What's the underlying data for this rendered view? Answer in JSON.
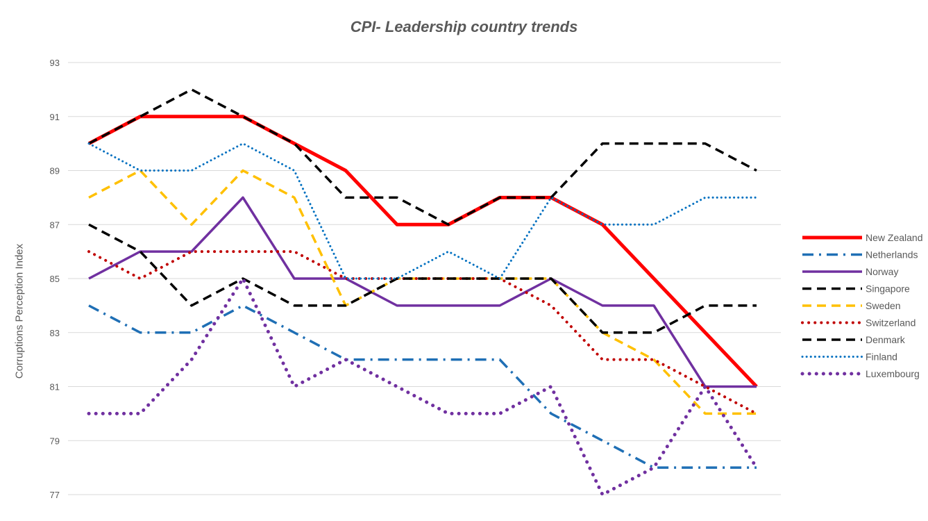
{
  "chart_data": {
    "type": "line",
    "title": "CPI- Leadership country trends",
    "xlabel": "",
    "ylabel": "Corruptions Perception Index",
    "ylim": [
      77,
      93
    ],
    "yticks": [
      93,
      91,
      89,
      87,
      85,
      83,
      81,
      79,
      77
    ],
    "grid": true,
    "legend_position": "right",
    "x": [
      1,
      2,
      3,
      4,
      5,
      6,
      7,
      8,
      9,
      10,
      11,
      12,
      13,
      14
    ],
    "series": [
      {
        "name": "New Zealand",
        "color": "#ff0000",
        "style": "solid-thick",
        "values": [
          90,
          91,
          91,
          91,
          90,
          89,
          87,
          87,
          88,
          88,
          87,
          85,
          83,
          81
        ]
      },
      {
        "name": "Netherlands",
        "color": "#1f6fb5",
        "style": "dashdot",
        "values": [
          84,
          83,
          83,
          84,
          83,
          82,
          82,
          82,
          82,
          80,
          79,
          78,
          78,
          78
        ]
      },
      {
        "name": "Norway",
        "color": "#7030a0",
        "style": "solid",
        "values": [
          85,
          86,
          86,
          88,
          85,
          85,
          84,
          84,
          84,
          85,
          84,
          84,
          81,
          81
        ]
      },
      {
        "name": "Singapore",
        "color": "#000000",
        "style": "dash",
        "values": [
          90,
          91,
          92,
          91,
          90,
          88,
          88,
          87,
          88,
          88,
          90,
          90,
          90,
          89
        ]
      },
      {
        "name": "Sweden",
        "color": "#ffc000",
        "style": "dash",
        "values": [
          88,
          89,
          87,
          89,
          88,
          84,
          85,
          85,
          85,
          85,
          83,
          82,
          80,
          80
        ]
      },
      {
        "name": "Switzerland",
        "color": "#c00000",
        "style": "dot",
        "values": [
          86,
          85,
          86,
          86,
          86,
          85,
          85,
          85,
          85,
          84,
          82,
          82,
          81,
          80
        ]
      },
      {
        "name": "Denmark",
        "color": "#000000",
        "style": "dash",
        "values": [
          87,
          86,
          84,
          85,
          84,
          84,
          85,
          85,
          85,
          85,
          83,
          83,
          84,
          84
        ]
      },
      {
        "name": "Finland",
        "color": "#0070c0",
        "style": "dot-small",
        "values": [
          90,
          89,
          89,
          90,
          89,
          85,
          85,
          86,
          85,
          88,
          87,
          87,
          88,
          88
        ]
      },
      {
        "name": "Luxembourg",
        "color": "#7030a0",
        "style": "dot-large",
        "values": [
          80,
          80,
          82,
          85,
          81,
          82,
          81,
          80,
          80,
          81,
          77,
          78,
          81,
          78
        ]
      }
    ]
  }
}
